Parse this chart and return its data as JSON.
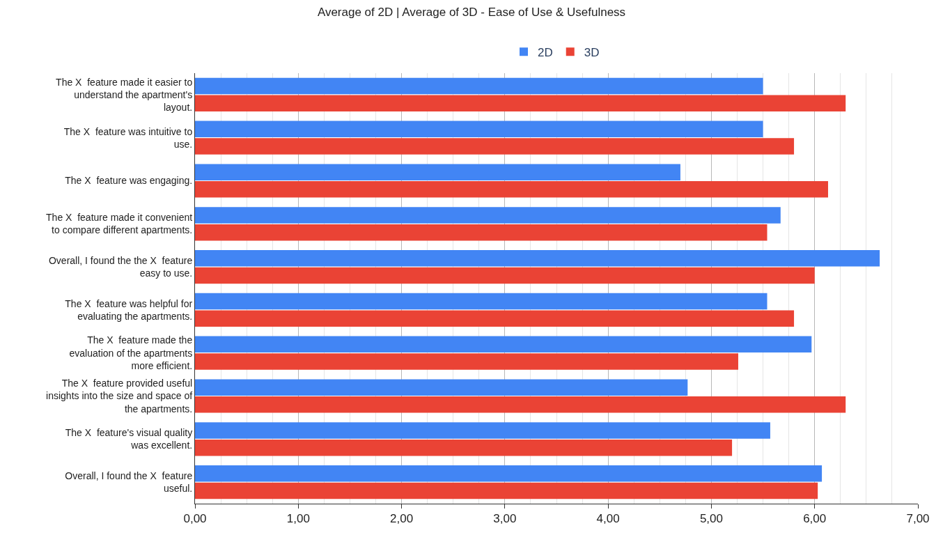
{
  "chart_data": {
    "type": "bar",
    "orientation": "horizontal",
    "title": "Average of 2D | Average of 3D - Ease of Use & Usefulness",
    "categories": [
      "The X  feature made it easier to\nunderstand the apartment's\nlayout.",
      "The X  feature was intuitive to\nuse.",
      "The X  feature was engaging.",
      "The X  feature made it convenient\nto compare different apartments.",
      "Overall, I found the the X  feature\neasy to use.",
      "The X  feature was helpful for\nevaluating the apartments.",
      "The X  feature made the\nevaluation of the apartments\nmore efficient.",
      "The X  feature provided useful\ninsights into the size and space of\nthe apartments.",
      "The X  feature's visual quality\nwas excellent.",
      "Overall, I found the X  feature\nuseful."
    ],
    "series": [
      {
        "name": "2D",
        "color": "#4285f4",
        "values": [
          5.5,
          5.5,
          4.7,
          5.67,
          6.63,
          5.54,
          5.97,
          4.77,
          5.57,
          6.07
        ]
      },
      {
        "name": "3D",
        "color": "#ea4335",
        "values": [
          6.3,
          5.8,
          6.13,
          5.54,
          6.0,
          5.8,
          5.26,
          6.3,
          5.2,
          6.03
        ]
      }
    ],
    "xlim": [
      0,
      7
    ],
    "xticks": [
      {
        "value": 0,
        "label": "0,00"
      },
      {
        "value": 1,
        "label": "1,00"
      },
      {
        "value": 2,
        "label": "2,00"
      },
      {
        "value": 3,
        "label": "3,00"
      },
      {
        "value": 4,
        "label": "4,00"
      },
      {
        "value": 5,
        "label": "5,00"
      },
      {
        "value": 6,
        "label": "6,00"
      },
      {
        "value": 7,
        "label": "7,00"
      }
    ],
    "grid": "x",
    "legend": "top"
  }
}
